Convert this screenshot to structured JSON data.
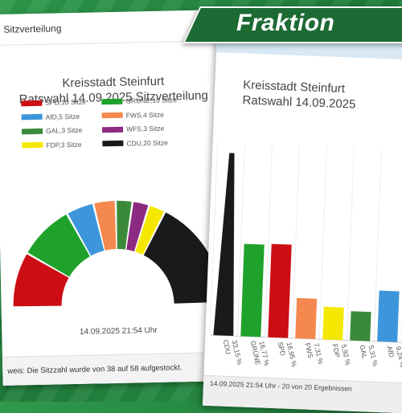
{
  "left_card": {
    "header": "Sitzverteilung",
    "title_line1": "Kreisstadt Steinfurt",
    "title_line2": "Ratswahl 14.09.2025 Sitzverteilung",
    "timestamp": "14.09.2025 21:54 Uhr",
    "note": "weis: Die Sitzzahl wurde von 38 auf 58 aufgestockt."
  },
  "right_card": {
    "title_line1": "Kreisstadt Steinfurt",
    "title_line2": "Ratswahl 14.09.2025",
    "footer": "14.09.2025 21:54 Uhr - 20 von 20 Ergebnissen"
  },
  "banner": {
    "label": "Fraktion"
  },
  "chart_data": [
    {
      "type": "pie",
      "subtype": "semicircle-parliament",
      "title": "Kreisstadt Steinfurt Ratswahl 14.09.2025 Sitzverteilung",
      "legend_placement": "top",
      "legend": [
        {
          "label": "SPD,10 Sitze",
          "color": "#cc0d14"
        },
        {
          "label": "GRÜNE,10 Sitze",
          "color": "#1ea22b"
        },
        {
          "label": "AfD,5 Sitze",
          "color": "#3d96db"
        },
        {
          "label": "FWS,4 Sitze",
          "color": "#f5884e"
        },
        {
          "label": "GAL,3 Sitze",
          "color": "#3a8a3a"
        },
        {
          "label": "WFS,3 Sitze",
          "color": "#8c2a82"
        },
        {
          "label": "FDP,3 Sitze",
          "color": "#f5e800"
        },
        {
          "label": "CDU,20 Sitze",
          "color": "#1a1a1a"
        }
      ],
      "segments": [
        {
          "name": "SPD",
          "value": 10,
          "color": "#cc0d14"
        },
        {
          "name": "GRÜNE",
          "value": 10,
          "color": "#1ea22b"
        },
        {
          "name": "AfD",
          "value": 5,
          "color": "#3d96db"
        },
        {
          "name": "FWS",
          "value": 4,
          "color": "#f5884e"
        },
        {
          "name": "GAL",
          "value": 3,
          "color": "#3a8a3a"
        },
        {
          "name": "WFS",
          "value": 3,
          "color": "#8c2a82"
        },
        {
          "name": "FDP",
          "value": 3,
          "color": "#f5e800"
        },
        {
          "name": "CDU",
          "value": 20,
          "color": "#1a1a1a"
        }
      ]
    },
    {
      "type": "bar",
      "title": "Kreisstadt Steinfurt Ratswahl 14.09.2025",
      "ylim": [
        0,
        35
      ],
      "grid": true,
      "bars": [
        {
          "category": "CDU",
          "value": 33.15,
          "label": "33,15 %",
          "color": "#1a1a1a"
        },
        {
          "category": "GRÜNE",
          "value": 16.77,
          "label": "16,77 %",
          "color": "#1ea22b"
        },
        {
          "category": "SPD",
          "value": 16.95,
          "label": "16,95 %",
          "color": "#cc0d14"
        },
        {
          "category": "FWS",
          "value": 7.31,
          "label": "7,31 %",
          "color": "#f5884e"
        },
        {
          "category": "FDP",
          "value": 5.92,
          "label": "5,92 %",
          "color": "#f5e800"
        },
        {
          "category": "GAL",
          "value": 5.31,
          "label": "5,31 %",
          "color": "#3a8a3a"
        },
        {
          "category": "AfD",
          "value": 9.24,
          "label": "9,24 %",
          "color": "#3d96db"
        }
      ]
    }
  ]
}
